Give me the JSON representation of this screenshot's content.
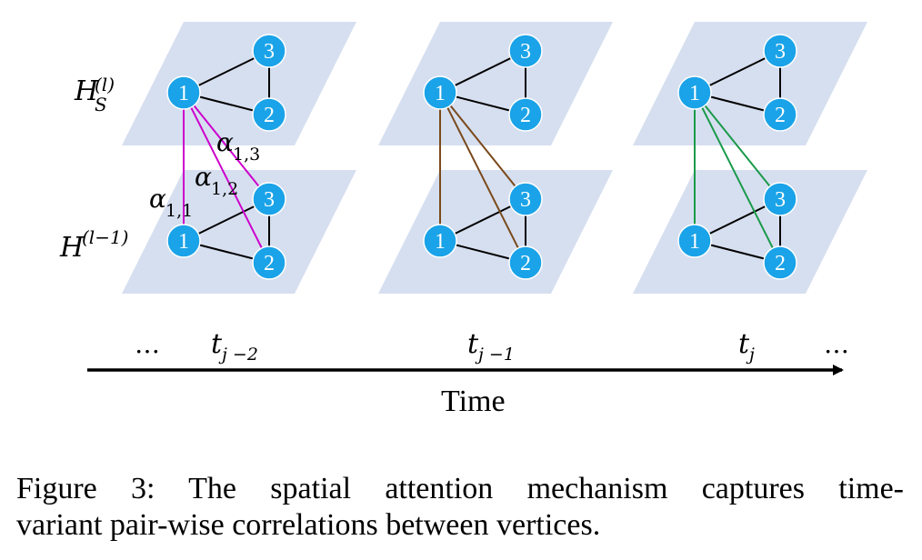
{
  "figure": {
    "layer_labels": {
      "top": "H",
      "top_sub": "S",
      "top_sup": "(l)",
      "bottom": "H",
      "bottom_sup": "(l−1)"
    },
    "attention_labels": [
      {
        "base": "α",
        "sub": "1,3"
      },
      {
        "base": "α",
        "sub": "1,2"
      },
      {
        "base": "α",
        "sub": "1,1"
      }
    ],
    "node_labels": [
      "1",
      "2",
      "3"
    ],
    "time_steps": [
      {
        "base": "t",
        "sub": "j −2",
        "edge_color": "#cc00cc"
      },
      {
        "base": "t",
        "sub": "j −1",
        "edge_color": "#7a4a1c"
      },
      {
        "base": "t",
        "sub": "j",
        "edge_color": "#1a9a4a"
      }
    ],
    "ellipsis_left": "…",
    "ellipsis_right": "…",
    "time_label": "Time",
    "colors": {
      "plane": "#d6dff0",
      "node": "#1aa3e8",
      "edge": "#000000"
    }
  },
  "caption": {
    "line1": "Figure 3: The spatial attention mechanism captures time-",
    "line2": "variant pair-wise correlations between vertices."
  }
}
